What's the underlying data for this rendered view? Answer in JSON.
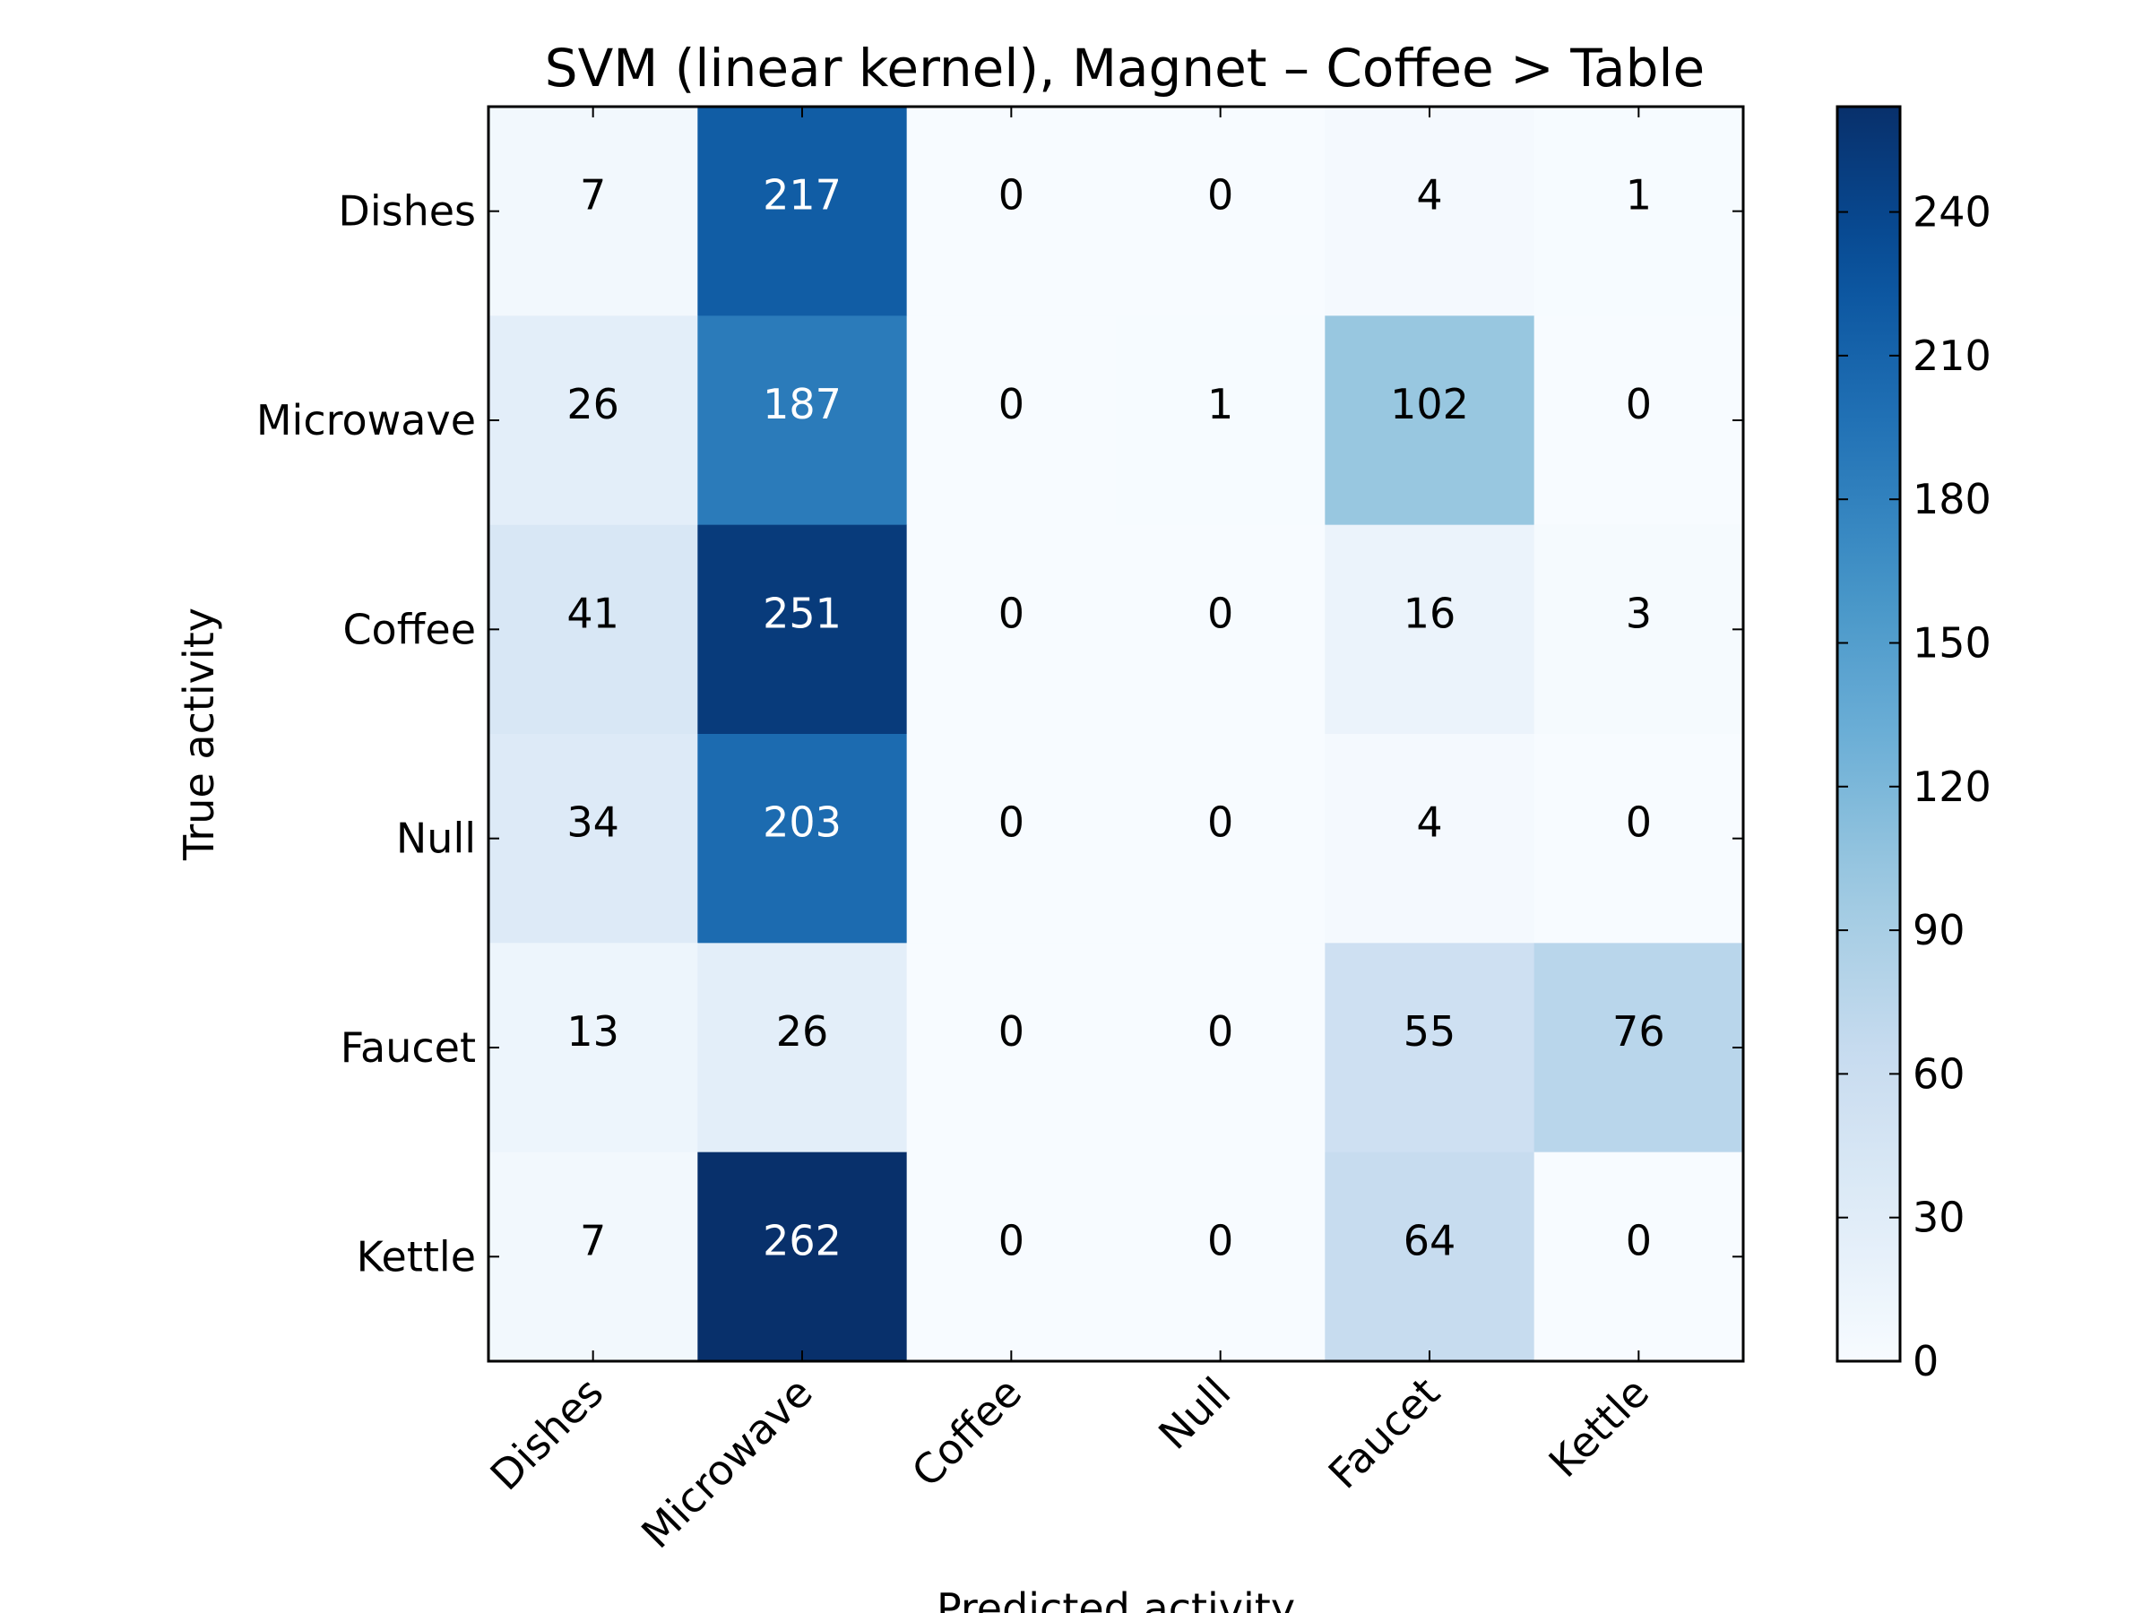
{
  "chart_data": {
    "type": "heatmap",
    "title": "SVM (linear kernel), Magnet – Coffee > Table",
    "xlabel": "Predicted activity",
    "ylabel": "True activity",
    "x_categories": [
      "Dishes",
      "Microwave",
      "Coffee",
      "Null",
      "Faucet",
      "Kettle"
    ],
    "y_categories": [
      "Dishes",
      "Microwave",
      "Coffee",
      "Null",
      "Faucet",
      "Kettle"
    ],
    "values": [
      [
        7,
        217,
        0,
        0,
        4,
        1
      ],
      [
        26,
        187,
        0,
        1,
        102,
        0
      ],
      [
        41,
        251,
        0,
        0,
        16,
        3
      ],
      [
        34,
        203,
        0,
        0,
        4,
        0
      ],
      [
        13,
        26,
        0,
        0,
        55,
        76
      ],
      [
        7,
        262,
        0,
        0,
        64,
        0
      ]
    ],
    "colormap": "Blues",
    "colorbar": {
      "min": 0,
      "max": 262,
      "ticks": [
        "0",
        "30",
        "60",
        "90",
        "120",
        "150",
        "180",
        "210",
        "240"
      ]
    },
    "colors": {
      "low": "#f7fbff",
      "high": "#08306b",
      "text_light": "#ffffff",
      "text_dark": "#000000"
    }
  }
}
